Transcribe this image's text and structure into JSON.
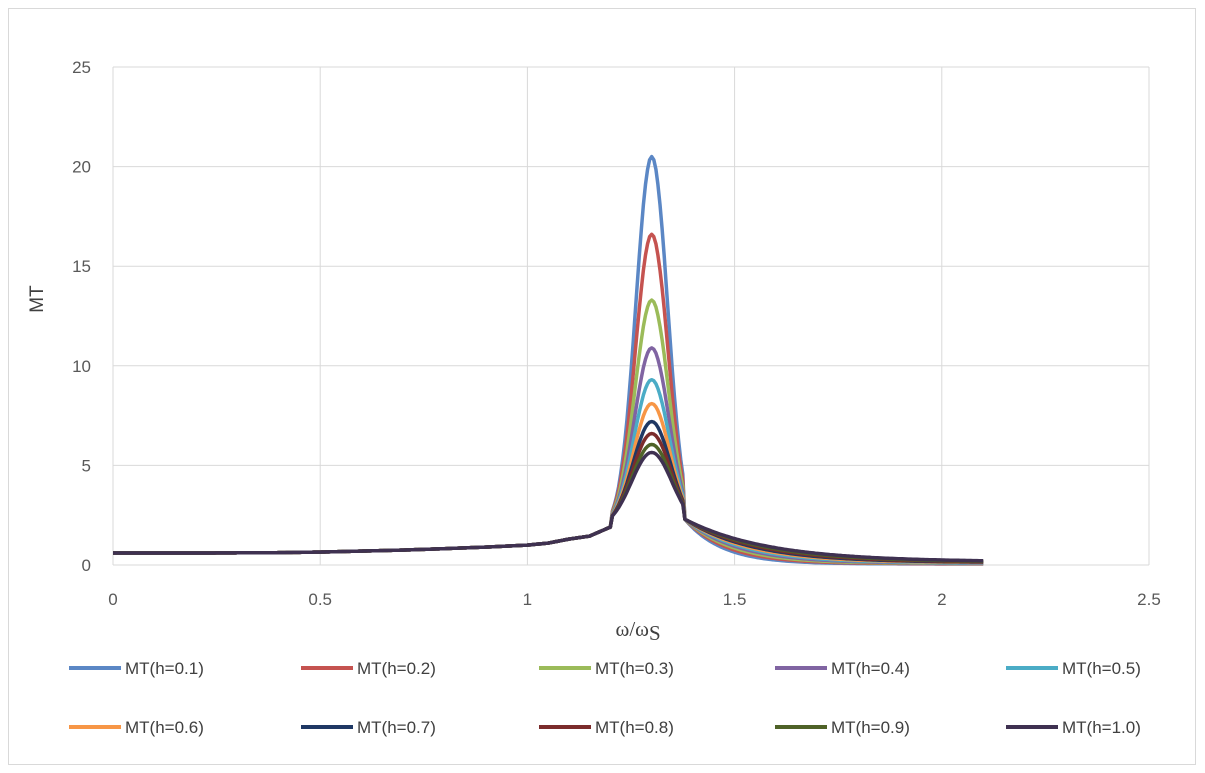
{
  "chart_data": {
    "type": "line",
    "title": "",
    "xlabel": "ω/ω",
    "xlabel_sub": "S",
    "ylabel": "MT",
    "xlim": [
      0,
      2.5
    ],
    "ylim": [
      0,
      25
    ],
    "x_ticks": [
      "0",
      "0.5",
      "1",
      "1.5",
      "2",
      "2.5"
    ],
    "y_ticks": [
      "0",
      "5",
      "10",
      "15",
      "20",
      "25"
    ],
    "grid": true,
    "legend_position": "bottom",
    "series": [
      {
        "name": "MT(h=0.1)",
        "color": "#5b87c5",
        "peak": 20.5
      },
      {
        "name": "MT(h=0.2)",
        "color": "#c55350",
        "peak": 16.6
      },
      {
        "name": "MT(h=0.3)",
        "color": "#9bbb59",
        "peak": 13.3
      },
      {
        "name": "MT(h=0.4)",
        "color": "#8064a2",
        "peak": 10.9
      },
      {
        "name": "MT(h=0.5)",
        "color": "#4bacc6",
        "peak": 9.3
      },
      {
        "name": "MT(h=0.6)",
        "color": "#f79646",
        "peak": 8.1
      },
      {
        "name": "MT(h=0.7)",
        "color": "#1f3864",
        "peak": 7.2
      },
      {
        "name": "MT(h=0.8)",
        "color": "#7b2c2c",
        "peak": 6.6
      },
      {
        "name": "MT(h=0.9)",
        "color": "#4f6228",
        "peak": 6.05
      },
      {
        "name": "MT(h=1.0)",
        "color": "#3f3151",
        "peak": 5.65
      }
    ],
    "x_points": [
      0,
      0.2,
      0.4,
      0.5,
      0.6,
      0.7,
      0.8,
      0.9,
      1.0,
      1.05,
      1.1,
      1.15,
      1.2,
      1.22,
      1.25,
      1.28,
      1.3,
      1.32,
      1.35,
      1.38,
      1.4,
      1.45,
      1.5,
      1.6,
      1.7,
      1.8,
      1.9,
      2.0,
      2.1
    ],
    "base_values": [
      0.6,
      0.6,
      0.62,
      0.65,
      0.7,
      0.75,
      0.82,
      0.9,
      1.0,
      1.1,
      1.3,
      1.45,
      1.9
    ]
  }
}
